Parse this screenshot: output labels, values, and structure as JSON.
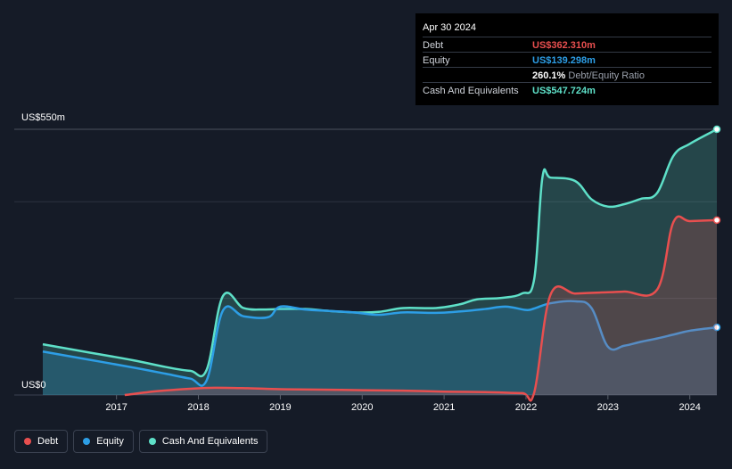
{
  "tooltip": {
    "date": "Apr 30 2024",
    "rows": [
      {
        "label": "Debt",
        "value": "US$362.310m",
        "color": "#e84f4f",
        "suffix": ""
      },
      {
        "label": "Equity",
        "value": "US$139.298m",
        "color": "#2d9ee6",
        "suffix": ""
      },
      {
        "label": "",
        "value": "260.1%",
        "color": "#ffffff",
        "suffix": "Debt/Equity Ratio"
      },
      {
        "label": "Cash And Equivalents",
        "value": "US$547.724m",
        "color": "#5ee0c8",
        "suffix": ""
      }
    ]
  },
  "legend": [
    {
      "label": "Debt",
      "color": "#e84f4f"
    },
    {
      "label": "Equity",
      "color": "#2d9ee6"
    },
    {
      "label": "Cash And Equivalents",
      "color": "#5ee0c8"
    }
  ],
  "chart_data": {
    "type": "area",
    "y_top_label": "US$550m",
    "y_bottom_label": "US$0",
    "ylim": [
      0,
      550
    ],
    "xlim": [
      2016.1,
      2024.33
    ],
    "x_ticks": [
      "2017",
      "2018",
      "2019",
      "2020",
      "2021",
      "2022",
      "2023",
      "2024"
    ],
    "grid": true,
    "series": [
      {
        "name": "Cash And Equivalents",
        "color": "#5ee0c8",
        "x": [
          2016.1,
          2016.6,
          2017.2,
          2017.6,
          2017.9,
          2018.1,
          2018.3,
          2018.55,
          2018.8,
          2019.0,
          2019.3,
          2019.6,
          2019.9,
          2020.2,
          2020.5,
          2020.9,
          2021.2,
          2021.4,
          2021.7,
          2021.95,
          2022.1,
          2022.2,
          2022.3,
          2022.6,
          2022.8,
          2023.0,
          2023.2,
          2023.4,
          2023.6,
          2023.8,
          2024.0,
          2024.33
        ],
        "y": [
          105,
          90,
          72,
          58,
          50,
          52,
          205,
          180,
          177,
          178,
          178,
          174,
          171,
          172,
          180,
          180,
          188,
          198,
          201,
          210,
          240,
          450,
          450,
          443,
          405,
          390,
          395,
          406,
          418,
          495,
          520,
          550
        ]
      },
      {
        "name": "Equity",
        "color": "#2d9ee6",
        "x": [
          2016.1,
          2016.6,
          2017.2,
          2017.6,
          2017.9,
          2018.1,
          2018.3,
          2018.55,
          2018.85,
          2019.0,
          2019.3,
          2019.6,
          2019.9,
          2020.2,
          2020.5,
          2020.9,
          2021.2,
          2021.5,
          2021.75,
          2022.0,
          2022.1,
          2022.3,
          2022.6,
          2022.8,
          2023.0,
          2023.2,
          2023.4,
          2023.6,
          2023.8,
          2024.0,
          2024.33
        ],
        "y": [
          90,
          75,
          57,
          44,
          34,
          30,
          175,
          163,
          161,
          183,
          177,
          174,
          171,
          166,
          171,
          170,
          173,
          178,
          183,
          176,
          179,
          190,
          194,
          180,
          100,
          102,
          110,
          117,
          125,
          133,
          140
        ]
      },
      {
        "name": "Debt",
        "color": "#e84f4f",
        "x": [
          2017.1,
          2017.5,
          2017.9,
          2018.2,
          2018.6,
          2019.0,
          2019.5,
          2020.0,
          2020.5,
          2021.0,
          2021.5,
          2021.95,
          2022.1,
          2022.3,
          2022.6,
          2022.9,
          2023.2,
          2023.6,
          2023.8,
          2024.0,
          2024.33
        ],
        "y": [
          0,
          8,
          13,
          15,
          14,
          12,
          11,
          10,
          9,
          7,
          6,
          4,
          5,
          208,
          210,
          212,
          214,
          218,
          358,
          360,
          362
        ]
      }
    ]
  }
}
